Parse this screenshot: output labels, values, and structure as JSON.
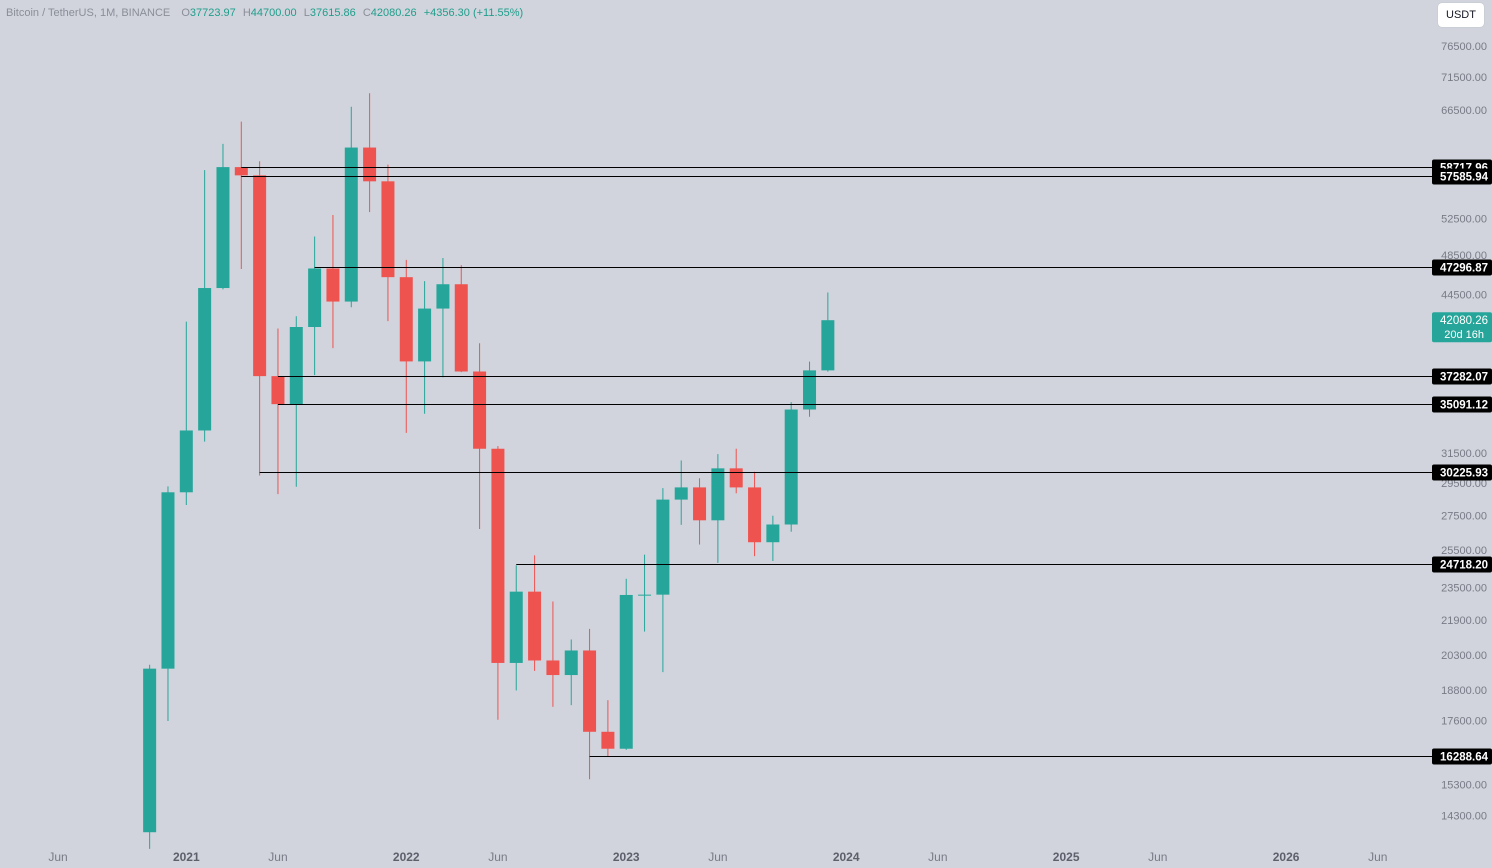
{
  "legend": {
    "symbol": "Bitcoin / TetherUS, 1M, BINANCE",
    "open_label": "O",
    "open": "37723.97",
    "high_label": "H",
    "high": "44700.00",
    "low_label": "L",
    "low": "37615.86",
    "close_label": "C",
    "close": "42080.26",
    "change": "+4356.30 (+11.55%)"
  },
  "currency_button": "USDT",
  "colors": {
    "background": "#d1d4dc",
    "up": "#26a69a",
    "down": "#ef5350",
    "level_line": "#000000",
    "axis_text": "#787b86"
  },
  "chart_data": {
    "type": "candlestick",
    "y_scale": "log",
    "ylim": [
      13500,
      82000
    ],
    "price_ticks": [
      "76500.00",
      "71500.00",
      "66500.00",
      "52500.00",
      "48500.00",
      "44500.00",
      "31500.00",
      "29500.00",
      "27500.00",
      "25500.00",
      "23500.00",
      "21900.00",
      "20300.00",
      "18800.00",
      "17600.00",
      "15300.00",
      "14300.00"
    ],
    "time_labels": [
      {
        "label": "Jun",
        "date": "2020-06"
      },
      {
        "label": "2021",
        "date": "2021-01"
      },
      {
        "label": "Jun",
        "date": "2021-06"
      },
      {
        "label": "2022",
        "date": "2022-01"
      },
      {
        "label": "Jun",
        "date": "2022-06"
      },
      {
        "label": "2023",
        "date": "2023-01"
      },
      {
        "label": "Jun",
        "date": "2023-06"
      },
      {
        "label": "2024",
        "date": "2024-01"
      },
      {
        "label": "Jun",
        "date": "2024-06"
      },
      {
        "label": "2025",
        "date": "2025-01"
      },
      {
        "label": "Jun",
        "date": "2025-06"
      },
      {
        "label": "2026",
        "date": "2026-01"
      },
      {
        "label": "Jun",
        "date": "2026-06"
      }
    ],
    "candles": [
      {
        "date": "2020-11",
        "o": 13791,
        "h": 19863,
        "l": 13300,
        "c": 19695
      },
      {
        "date": "2020-12",
        "o": 19695,
        "h": 29300,
        "l": 17572,
        "c": 28923
      },
      {
        "date": "2021-01",
        "o": 28923,
        "h": 41950,
        "l": 28130,
        "c": 33092
      },
      {
        "date": "2021-02",
        "o": 33092,
        "h": 58352,
        "l": 32296,
        "c": 45135
      },
      {
        "date": "2021-03",
        "o": 45135,
        "h": 61788,
        "l": 45000,
        "c": 58741
      },
      {
        "date": "2021-04",
        "o": 58741,
        "h": 64854,
        "l": 47044,
        "c": 57694
      },
      {
        "date": "2021-05",
        "o": 57694,
        "h": 59500,
        "l": 30000,
        "c": 37253
      },
      {
        "date": "2021-06",
        "o": 37253,
        "h": 41330,
        "l": 28805,
        "c": 35045
      },
      {
        "date": "2021-07",
        "o": 35045,
        "h": 42448,
        "l": 29278,
        "c": 41461
      },
      {
        "date": "2021-08",
        "o": 41461,
        "h": 50500,
        "l": 37332,
        "c": 47100
      },
      {
        "date": "2021-09",
        "o": 47100,
        "h": 52920,
        "l": 39600,
        "c": 43824
      },
      {
        "date": "2021-10",
        "o": 43824,
        "h": 67000,
        "l": 43283,
        "c": 61299
      },
      {
        "date": "2021-11",
        "o": 61299,
        "h": 69000,
        "l": 53256,
        "c": 56950
      },
      {
        "date": "2021-12",
        "o": 56950,
        "h": 59053,
        "l": 42000,
        "c": 46217
      },
      {
        "date": "2022-01",
        "o": 46217,
        "h": 47990,
        "l": 32917,
        "c": 38466
      },
      {
        "date": "2022-02",
        "o": 38466,
        "h": 45821,
        "l": 34322,
        "c": 43160
      },
      {
        "date": "2022-03",
        "o": 43160,
        "h": 48189,
        "l": 37155,
        "c": 45510
      },
      {
        "date": "2022-04",
        "o": 45510,
        "h": 47444,
        "l": 37578,
        "c": 37630
      },
      {
        "date": "2022-05",
        "o": 37630,
        "h": 40023,
        "l": 26700,
        "c": 31801
      },
      {
        "date": "2022-06",
        "o": 31801,
        "h": 31982,
        "l": 17622,
        "c": 19942
      },
      {
        "date": "2022-07",
        "o": 19942,
        "h": 24668,
        "l": 18781,
        "c": 23293
      },
      {
        "date": "2022-08",
        "o": 23293,
        "h": 25211,
        "l": 19600,
        "c": 20049
      },
      {
        "date": "2022-09",
        "o": 20049,
        "h": 22799,
        "l": 18125,
        "c": 19423
      },
      {
        "date": "2022-10",
        "o": 19423,
        "h": 20988,
        "l": 18190,
        "c": 20491
      },
      {
        "date": "2022-11",
        "o": 20491,
        "h": 21480,
        "l": 15476,
        "c": 17164
      },
      {
        "date": "2022-12",
        "o": 17164,
        "h": 18387,
        "l": 16256,
        "c": 16542
      },
      {
        "date": "2023-01",
        "o": 16542,
        "h": 23960,
        "l": 16500,
        "c": 23125
      },
      {
        "date": "2023-02",
        "o": 23125,
        "h": 25250,
        "l": 21351,
        "c": 23141
      },
      {
        "date": "2023-03",
        "o": 23141,
        "h": 29184,
        "l": 19549,
        "c": 28465
      },
      {
        "date": "2023-04",
        "o": 28465,
        "h": 31000,
        "l": 26942,
        "c": 29233
      },
      {
        "date": "2023-05",
        "o": 29233,
        "h": 29820,
        "l": 25811,
        "c": 27210
      },
      {
        "date": "2023-06",
        "o": 27210,
        "h": 31431,
        "l": 24800,
        "c": 30472
      },
      {
        "date": "2023-07",
        "o": 30472,
        "h": 31804,
        "l": 28861,
        "c": 29232
      },
      {
        "date": "2023-08",
        "o": 29232,
        "h": 30245,
        "l": 25166,
        "c": 25941
      },
      {
        "date": "2023-09",
        "o": 25941,
        "h": 27483,
        "l": 24901,
        "c": 26963
      },
      {
        "date": "2023-10",
        "o": 26963,
        "h": 35198,
        "l": 26538,
        "c": 34639
      },
      {
        "date": "2023-11",
        "o": 34639,
        "h": 38450,
        "l": 34097,
        "c": 37723
      },
      {
        "date": "2023-12",
        "o": 37723,
        "h": 44700,
        "l": 37615,
        "c": 42080
      }
    ],
    "levels": [
      {
        "label": "58717.96",
        "price": 58717.96,
        "from": "2021-04"
      },
      {
        "label": "57585.94",
        "price": 57585.94,
        "from": "2021-04"
      },
      {
        "label": "47296.87",
        "price": 47296.87,
        "from": "2021-08"
      },
      {
        "label": "37282.07",
        "price": 37282.07,
        "from": "2021-06"
      },
      {
        "label": "35091.12",
        "price": 35091.12,
        "from": "2021-06"
      },
      {
        "label": "30225.93",
        "price": 30225.93,
        "from": "2021-05"
      },
      {
        "label": "24718.20",
        "price": 24718.2,
        "from": "2022-07"
      },
      {
        "label": "16288.64",
        "price": 16288.64,
        "from": "2022-11"
      }
    ],
    "last_price": {
      "label": "42080.26",
      "countdown": "20d 16h",
      "price": 42080.26
    }
  }
}
